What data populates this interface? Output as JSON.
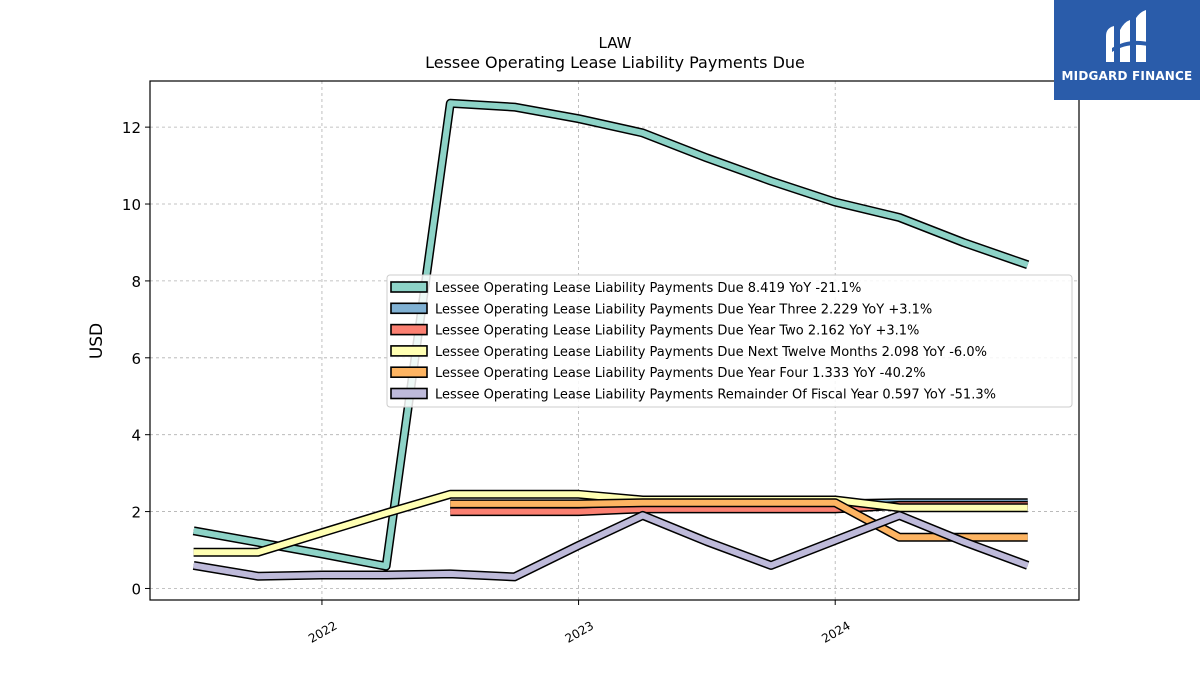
{
  "brand": {
    "name": "MIDGARD FINANCE",
    "bg_color": "#2a5caa",
    "icon": "midgard-logo-icon"
  },
  "chart_data": {
    "type": "line",
    "title": "LAW",
    "subtitle": "Lessee Operating Lease Liability Payments Due",
    "xlabel": "",
    "ylabel": "USD",
    "xlim": [
      2021.33,
      2024.95
    ],
    "ylim": [
      -0.3,
      13.2
    ],
    "yticks": [
      0,
      2,
      4,
      6,
      8,
      10,
      12
    ],
    "xticks": [
      {
        "value": 2022.0,
        "label": "2022"
      },
      {
        "value": 2023.0,
        "label": "2023"
      },
      {
        "value": 2024.0,
        "label": "2024"
      }
    ],
    "grid": true,
    "legend_position": "center-right",
    "series": [
      {
        "name": "Lessee Operating Lease Liability Payments Due",
        "legend": "Lessee Operating Lease Liability Payments Due  8.419 YoY -21.1%",
        "color": "#8dd3c7",
        "x": [
          2021.5,
          2021.75,
          2022.0,
          2022.25,
          2022.5,
          2022.75,
          2023.0,
          2023.25,
          2023.5,
          2023.75,
          2024.0,
          2024.25,
          2024.5,
          2024.75
        ],
        "y": [
          1.5,
          1.2,
          0.9,
          0.58,
          12.62,
          12.52,
          12.22,
          11.85,
          11.2,
          10.6,
          10.05,
          9.65,
          9.0,
          8.42
        ]
      },
      {
        "name": "Lessee Operating Lease Liability Payments Due Year Three",
        "legend": "Lessee Operating Lease Liability Payments Due Year Three  2.229 YoY +3.1%",
        "color": "#80b1d3",
        "x": [
          2022.5,
          2022.75,
          2023.0,
          2023.25,
          2023.5,
          2023.75,
          2024.0,
          2024.25,
          2024.5,
          2024.75
        ],
        "y": [
          2.16,
          2.16,
          2.16,
          2.2,
          2.2,
          2.2,
          2.2,
          2.23,
          2.23,
          2.23
        ]
      },
      {
        "name": "Lessee Operating Lease Liability Payments Due Year Two",
        "legend": "Lessee Operating Lease Liability Payments Due Year Two  2.162 YoY +3.1%",
        "color": "#fb8072",
        "x": [
          2022.5,
          2022.75,
          2023.0,
          2023.25,
          2023.5,
          2023.75,
          2024.0,
          2024.25,
          2024.5,
          2024.75
        ],
        "y": [
          2.0,
          2.0,
          2.0,
          2.07,
          2.07,
          2.07,
          2.07,
          2.16,
          2.16,
          2.16
        ]
      },
      {
        "name": "Lessee Operating Lease Liability Payments Due Next Twelve Months",
        "legend": "Lessee Operating Lease Liability Payments Due Next Twelve Months  2.098 YoY -6.0%",
        "color": "#ffffb3",
        "x": [
          2021.5,
          2021.75,
          2022.0,
          2022.25,
          2022.5,
          2022.75,
          2023.0,
          2023.25,
          2023.5,
          2023.75,
          2024.0,
          2024.25,
          2024.5,
          2024.75
        ],
        "y": [
          0.94,
          0.94,
          1.45,
          1.96,
          2.45,
          2.45,
          2.45,
          2.3,
          2.3,
          2.3,
          2.3,
          2.1,
          2.1,
          2.1
        ]
      },
      {
        "name": "Lessee Operating Lease Liability Payments Due Year Four",
        "legend": "Lessee Operating Lease Liability Payments Due Year Four  1.333 YoY -40.2%",
        "color": "#fdb462",
        "x": [
          2022.5,
          2022.75,
          2023.0,
          2023.25,
          2023.5,
          2023.75,
          2024.0,
          2024.25,
          2024.5,
          2024.75
        ],
        "y": [
          2.2,
          2.2,
          2.2,
          2.23,
          2.23,
          2.23,
          2.23,
          1.33,
          1.33,
          1.33
        ]
      },
      {
        "name": "Lessee Operating Lease Liability Payments Remainder Of Fiscal Year",
        "legend": "Lessee Operating Lease Liability Payments Remainder Of Fiscal Year  0.597 YoY -51.3%",
        "color": "#bebada",
        "x": [
          2021.5,
          2021.75,
          2022.0,
          2022.25,
          2022.5,
          2022.75,
          2023.0,
          2023.25,
          2023.5,
          2023.75,
          2024.0,
          2024.25,
          2024.5,
          2024.75
        ],
        "y": [
          0.6,
          0.32,
          0.35,
          0.35,
          0.38,
          0.3,
          1.12,
          1.9,
          1.22,
          0.6,
          1.25,
          1.9,
          1.22,
          0.6
        ]
      }
    ]
  }
}
